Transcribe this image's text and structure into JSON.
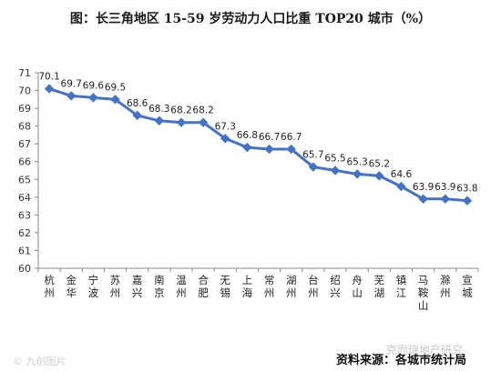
{
  "chart_data": {
    "type": "line",
    "title": "图：长三角地区 15-59 岁劳动力人口比重 TOP20 城市（%）",
    "categories": [
      "杭州",
      "金华",
      "宁波",
      "苏州",
      "嘉兴",
      "南京",
      "温州",
      "合肥",
      "无锡",
      "上海",
      "常州",
      "湖州",
      "台州",
      "绍兴",
      "舟山",
      "芜湖",
      "镇江",
      "马鞍山",
      "滁州",
      "宣城"
    ],
    "values": [
      70.1,
      69.7,
      69.6,
      69.5,
      68.6,
      68.3,
      68.2,
      68.2,
      67.3,
      66.8,
      66.7,
      66.7,
      65.7,
      65.5,
      65.3,
      65.2,
      64.6,
      63.9,
      63.9,
      63.8
    ],
    "data_labels": [
      "70.1",
      "69.7",
      "69.6",
      "69.5",
      "68.6",
      "68.3",
      "68.2",
      "68.2",
      "67.3",
      "66.8",
      "66.7",
      "66.7",
      "65.7",
      "65.5",
      "65.3",
      "65.2",
      "64.6",
      "63.9",
      "63.9",
      "63.8"
    ],
    "ylim": [
      60,
      71
    ],
    "yticks": [
      60,
      61,
      62,
      63,
      64,
      65,
      66,
      67,
      68,
      69,
      70,
      71
    ],
    "grid": false,
    "legend": "none",
    "line_color": "#4472C4",
    "marker": "diamond"
  },
  "source": "资料来源：各城市统计局",
  "watermark_left": "© 九创图片",
  "watermark_right": "克而瑞地产研究"
}
